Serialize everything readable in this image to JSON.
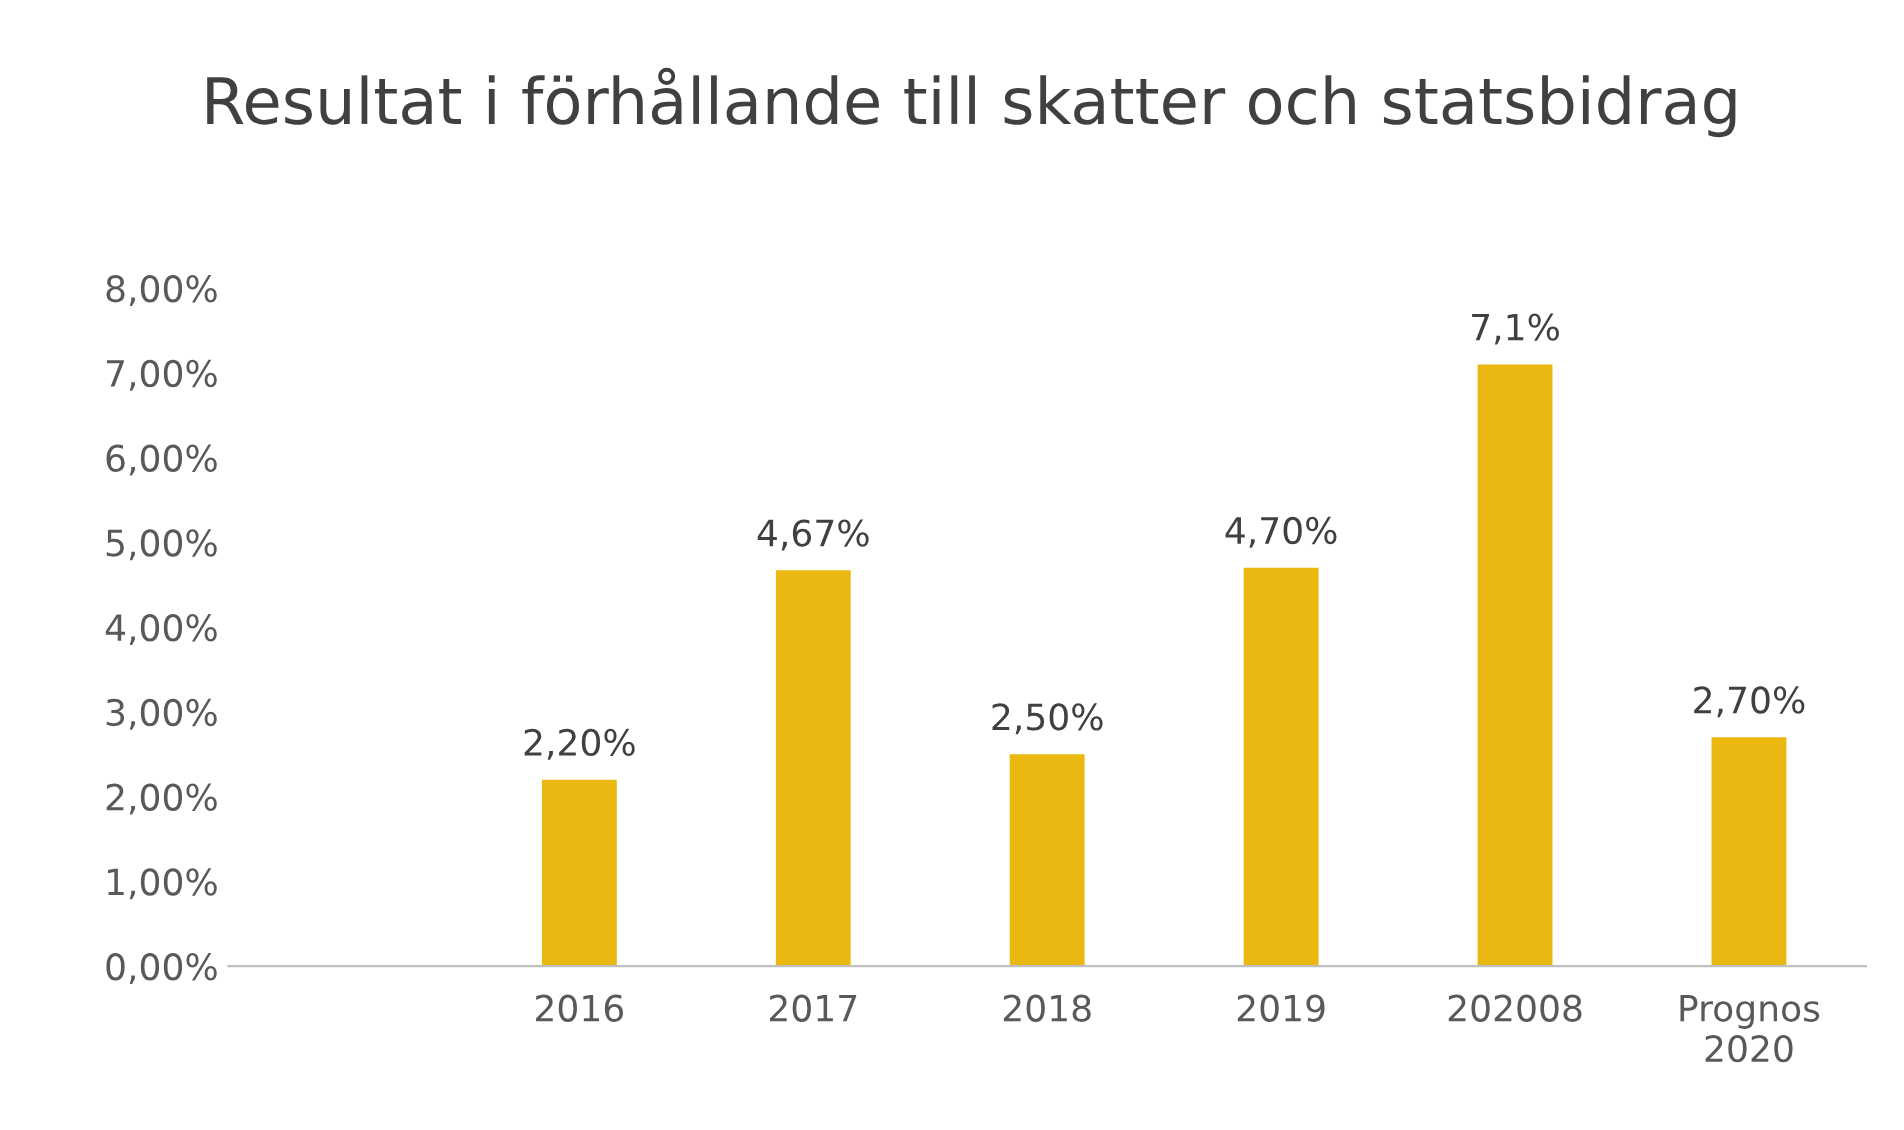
{
  "chart_data": {
    "type": "bar",
    "title": "Resultat i förhållande till skatter och statsbidrag",
    "categories": [
      null,
      "2016",
      "2017",
      "2018",
      "2019",
      "202008",
      "Prognos\n2020"
    ],
    "values": [
      null,
      2.2,
      4.67,
      2.5,
      4.7,
      7.1,
      2.7
    ],
    "value_labels": [
      null,
      "2,20%",
      "4,67%",
      "2,50%",
      "4,70%",
      "7,1%",
      "2,70%"
    ],
    "color": "#ebb711",
    "ylim": [
      0,
      8
    ],
    "yticks": [
      {
        "value": 0,
        "label": "0,00%"
      },
      {
        "value": 1,
        "label": "1,00%"
      },
      {
        "value": 2,
        "label": "2,00%"
      },
      {
        "value": 3,
        "label": "3,00%"
      },
      {
        "value": 4,
        "label": "4,00%"
      },
      {
        "value": 5,
        "label": "5,00%"
      },
      {
        "value": 6,
        "label": "6,00%"
      },
      {
        "value": 7,
        "label": "7,00%"
      },
      {
        "value": 8,
        "label": "8,00%"
      }
    ],
    "grid": false,
    "legend": false
  }
}
